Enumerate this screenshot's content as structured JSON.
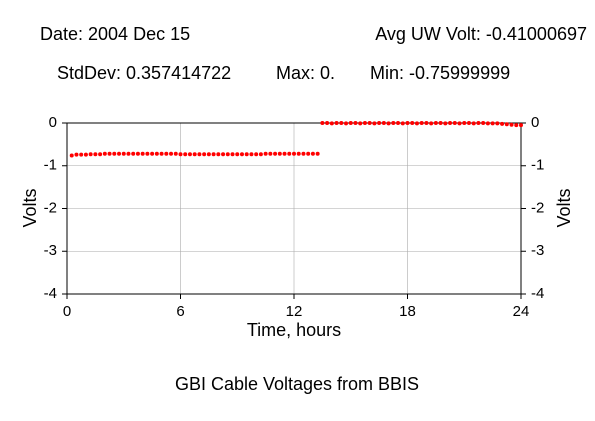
{
  "chart_data": {
    "type": "scatter",
    "title": "GBI Cable Voltages from BBIS",
    "annotations": [
      "Date: 2004 Dec 15",
      "Avg UW Volt: -0.41000697",
      "StdDev: 0.357414722",
      "Max: 0.",
      "Min: -0.75999999"
    ],
    "xlabel": "Time, hours",
    "ylabel": "Volts",
    "y2label": "Volts",
    "x": [
      0.25,
      0.5,
      0.75,
      1,
      1.25,
      1.5,
      1.75,
      2,
      2.25,
      2.5,
      2.75,
      3,
      3.25,
      3.5,
      3.75,
      4,
      4.25,
      4.5,
      4.75,
      5,
      5.25,
      5.5,
      5.75,
      6,
      6.25,
      6.5,
      6.75,
      7,
      7.25,
      7.5,
      7.75,
      8,
      8.25,
      8.5,
      8.75,
      9,
      9.25,
      9.5,
      9.75,
      10,
      10.25,
      10.5,
      10.75,
      11,
      11.25,
      11.5,
      11.75,
      12,
      12.25,
      12.5,
      12.75,
      13,
      13.25,
      13.5,
      13.75,
      14,
      14.25,
      14.5,
      14.75,
      15,
      15.25,
      15.5,
      15.75,
      16,
      16.25,
      16.5,
      16.75,
      17,
      17.25,
      17.5,
      17.75,
      18,
      18.25,
      18.5,
      18.75,
      19,
      19.25,
      19.5,
      19.75,
      20,
      20.25,
      20.5,
      20.75,
      21,
      21.25,
      21.5,
      21.75,
      22,
      22.25,
      22.5,
      22.75,
      23,
      23.25,
      23.5,
      23.75,
      24
    ],
    "values": [
      -0.76,
      -0.74,
      -0.74,
      -0.74,
      -0.73,
      -0.73,
      -0.73,
      -0.72,
      -0.72,
      -0.72,
      -0.72,
      -0.72,
      -0.72,
      -0.72,
      -0.72,
      -0.72,
      -0.72,
      -0.72,
      -0.72,
      -0.72,
      -0.72,
      -0.72,
      -0.72,
      -0.73,
      -0.73,
      -0.73,
      -0.73,
      -0.73,
      -0.73,
      -0.73,
      -0.73,
      -0.73,
      -0.73,
      -0.73,
      -0.73,
      -0.73,
      -0.73,
      -0.73,
      -0.73,
      -0.73,
      -0.73,
      -0.72,
      -0.72,
      -0.72,
      -0.72,
      -0.72,
      -0.72,
      -0.72,
      -0.72,
      -0.72,
      -0.72,
      -0.72,
      -0.72,
      0,
      0,
      -0.01,
      0,
      0,
      -0.01,
      0,
      0,
      -0.01,
      0,
      0,
      -0.01,
      0,
      0,
      -0.01,
      0,
      0,
      -0.01,
      0,
      0,
      -0.01,
      0,
      0,
      -0.01,
      0,
      0,
      -0.01,
      0,
      0,
      -0.01,
      0,
      0,
      -0.01,
      0,
      0,
      -0.01,
      -0.01,
      -0.01,
      -0.02,
      -0.03,
      -0.04,
      -0.05,
      -0.05
    ],
    "color": "#ff0000",
    "xlim": [
      0,
      24
    ],
    "xticks": [
      0,
      6,
      12,
      18,
      24
    ],
    "ylim": [
      -4,
      0
    ],
    "yticks": [
      0,
      -1,
      -2,
      -3,
      -4
    ],
    "y2lim": [
      -4,
      0
    ],
    "y2ticks": [
      0,
      -1,
      -2,
      -3,
      -4
    ],
    "grid": true
  }
}
